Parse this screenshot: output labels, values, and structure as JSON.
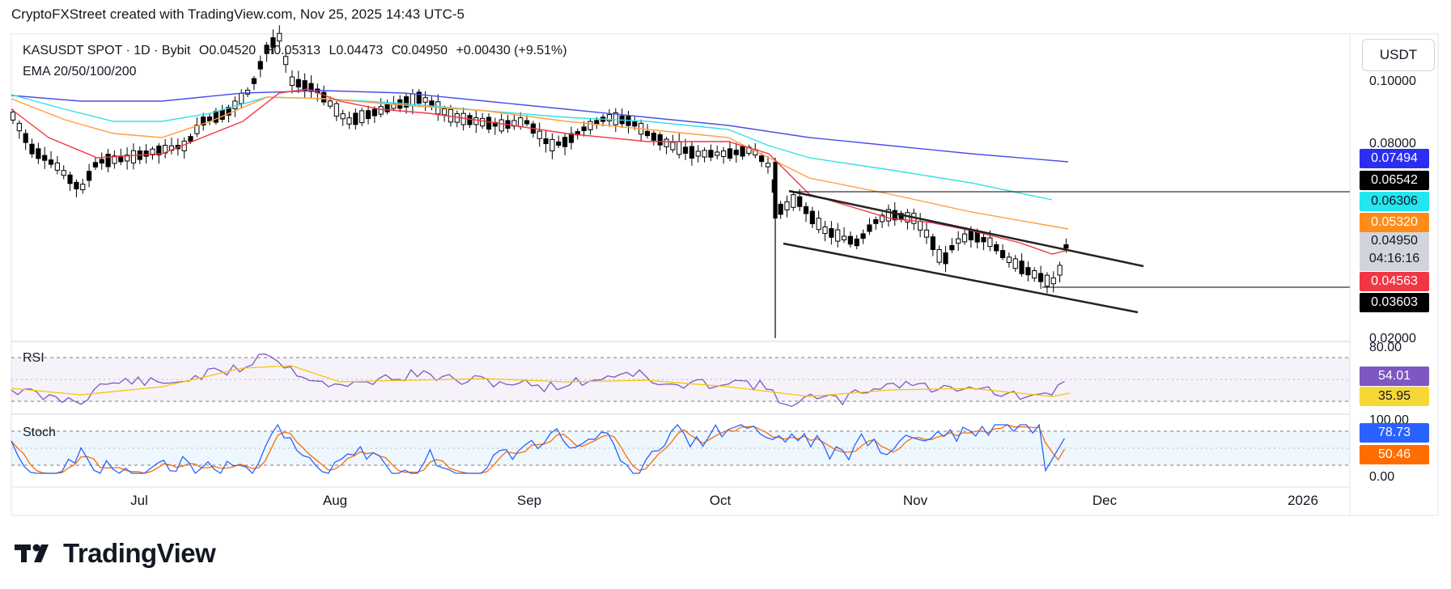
{
  "header": {
    "text": "CryptoFXStreet created with TradingView.com, Nov 25, 2025 14:43 UTC-5"
  },
  "legend": {
    "symbol_line": "KASUSDT SPOT · 1D · Bybit",
    "open": "O0.04520",
    "high": "H0.05313",
    "low": "L0.04473",
    "close": "C0.04950",
    "change": "+0.00430 (+9.51%)",
    "ema_label": "EMA 20/50/100/200"
  },
  "currency_button": "USDT",
  "price_axis": {
    "ticks": [
      "0.10000",
      "0.08000",
      "0.02000"
    ]
  },
  "price_tags": [
    {
      "value": "0.07494",
      "bg": "#2a2ef0",
      "fg": "#ffffff"
    },
    {
      "value": "0.06542",
      "bg": "#000000",
      "fg": "#ffffff"
    },
    {
      "value": "0.06306",
      "bg": "#22e6f0",
      "fg": "#131722"
    },
    {
      "value": "0.05320",
      "bg": "#ff8c1a",
      "fg": "#ffffff"
    },
    {
      "value": "0.04950",
      "bg": "#d1d4dc",
      "fg": "#131722",
      "sub": "04:16:16"
    },
    {
      "value": "0.04563",
      "bg": "#f23645",
      "fg": "#ffffff"
    },
    {
      "value": "0.03603",
      "bg": "#000000",
      "fg": "#ffffff"
    }
  ],
  "rsi": {
    "label": "RSI",
    "ticks": [
      "80.00"
    ],
    "values": [
      "54.01",
      "35.95"
    ],
    "colors": [
      "#7e57c2",
      "#f7d736"
    ]
  },
  "stoch": {
    "label": "Stoch",
    "ticks": [
      "100.00",
      "0.00"
    ],
    "values": [
      "78.73",
      "50.46"
    ],
    "colors": [
      "#2962ff",
      "#ff6d00"
    ]
  },
  "time_axis": {
    "months": [
      "Jul",
      "Aug",
      "Sep",
      "Oct",
      "Nov",
      "Dec",
      "2026"
    ]
  },
  "brand": {
    "name": "TradingView"
  },
  "chart_data": {
    "type": "candlestick",
    "symbol": "KASUSDT SPOT",
    "interval": "1D",
    "exchange": "Bybit",
    "x_axis": [
      "Jul",
      "Aug",
      "Sep",
      "Oct",
      "Nov",
      "Dec",
      "2026"
    ],
    "last_close": 0.0495,
    "last_ohlc": {
      "open": 0.0452,
      "high": 0.05313,
      "low": 0.04473,
      "close": 0.0495
    },
    "ema_latest": {
      "ema20": 0.04563,
      "ema50": 0.0532,
      "ema100": 0.06306,
      "ema200": 0.07494
    },
    "levels": [
      0.06542,
      0.03603
    ],
    "indicators": {
      "rsi": {
        "rsi": 54.01,
        "signal": 35.95,
        "bands": [
          30,
          70
        ]
      },
      "stoch": {
        "k": 78.73,
        "d": 50.46,
        "bands": [
          20,
          80
        ]
      }
    },
    "colors": {
      "up": "#ffffff",
      "down": "#000000",
      "ema20": "#f23645",
      "ema50": "#ff9e40",
      "ema100": "#32e0e8",
      "ema200": "#4a4ee8"
    }
  }
}
